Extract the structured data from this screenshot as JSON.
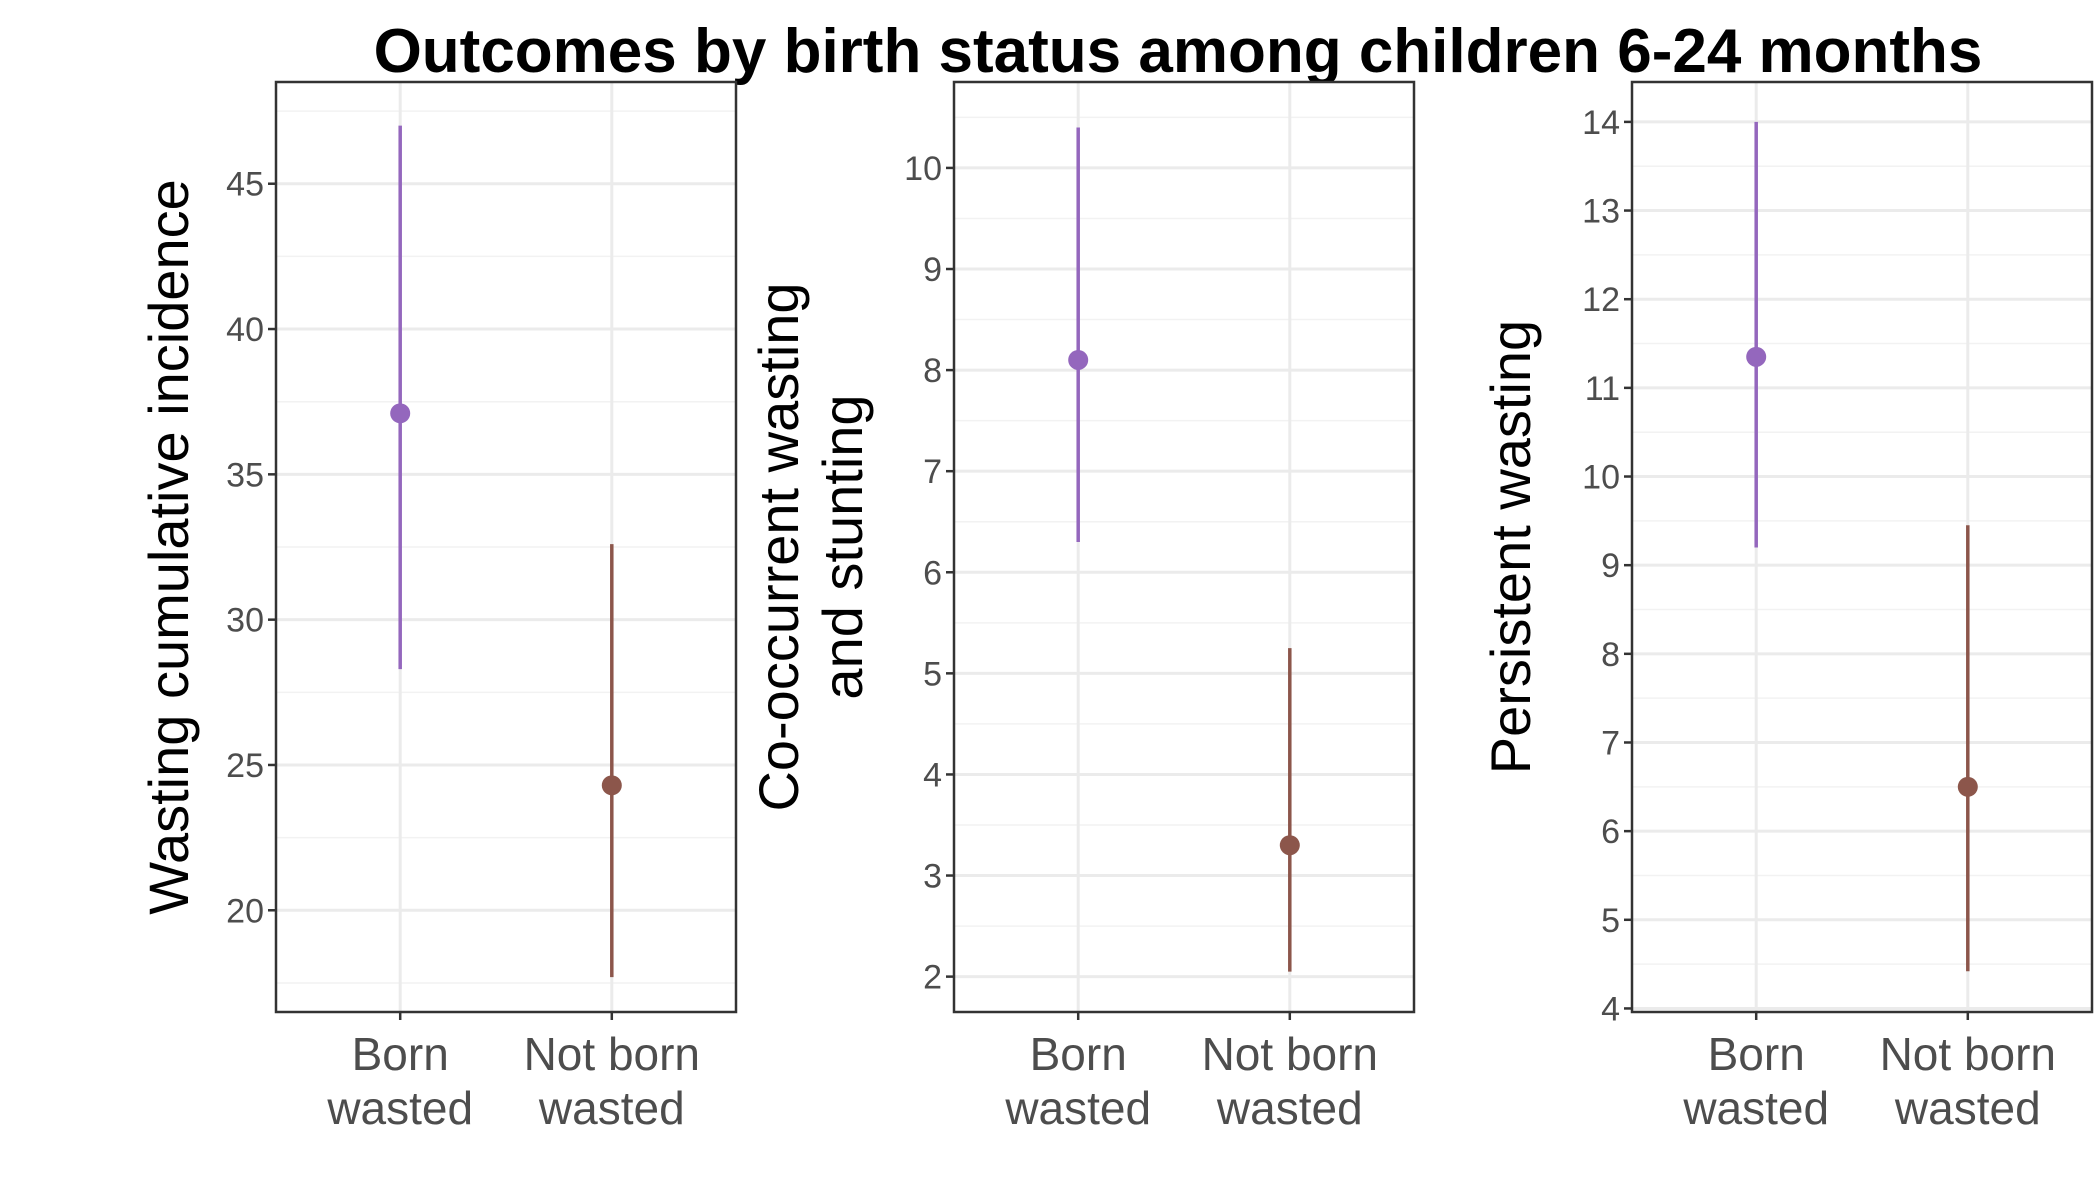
{
  "chart_data": [
    {
      "type": "scatter",
      "title": "Outcomes by birth status among children 6-24 months",
      "ylabel": "Wasting cumulative incidence",
      "categories": [
        [
          "Born",
          "wasted"
        ],
        [
          "Not born",
          "wasted"
        ]
      ],
      "ylim": [
        16.5,
        48.5
      ],
      "yticks": [
        20,
        25,
        30,
        35,
        40,
        45
      ],
      "grid": true,
      "points": [
        {
          "category": "Born wasted",
          "estimate": 37.1,
          "lower": 28.3,
          "upper": 47.0,
          "color": "#9467bd"
        },
        {
          "category": "Not born wasted",
          "estimate": 24.3,
          "lower": 17.7,
          "upper": 32.6,
          "color": "#8c564b"
        }
      ]
    },
    {
      "type": "scatter",
      "ylabel": "Co-occurrent wasting and stunting",
      "ylabel_lines": [
        "Co-occurrent wasting",
        "and stunting"
      ],
      "categories": [
        [
          "Born",
          "wasted"
        ],
        [
          "Not born",
          "wasted"
        ]
      ],
      "ylim": [
        1.65,
        10.85
      ],
      "yticks": [
        2,
        3,
        4,
        5,
        6,
        7,
        8,
        9,
        10
      ],
      "grid": true,
      "points": [
        {
          "category": "Born wasted",
          "estimate": 8.1,
          "lower": 6.3,
          "upper": 10.4,
          "color": "#9467bd"
        },
        {
          "category": "Not born wasted",
          "estimate": 3.3,
          "lower": 2.05,
          "upper": 5.25,
          "color": "#8c564b"
        }
      ]
    },
    {
      "type": "scatter",
      "ylabel": "Persistent wasting",
      "categories": [
        [
          "Born",
          "wasted"
        ],
        [
          "Not born",
          "wasted"
        ]
      ],
      "ylim": [
        3.96,
        14.45
      ],
      "yticks": [
        4,
        5,
        6,
        7,
        8,
        9,
        10,
        11,
        12,
        13,
        14
      ],
      "grid": true,
      "points": [
        {
          "category": "Born wasted",
          "estimate": 11.35,
          "lower": 9.2,
          "upper": 14.0,
          "color": "#9467bd"
        },
        {
          "category": "Not born wasted",
          "estimate": 6.5,
          "lower": 4.42,
          "upper": 9.45,
          "color": "#8c564b"
        }
      ]
    }
  ]
}
